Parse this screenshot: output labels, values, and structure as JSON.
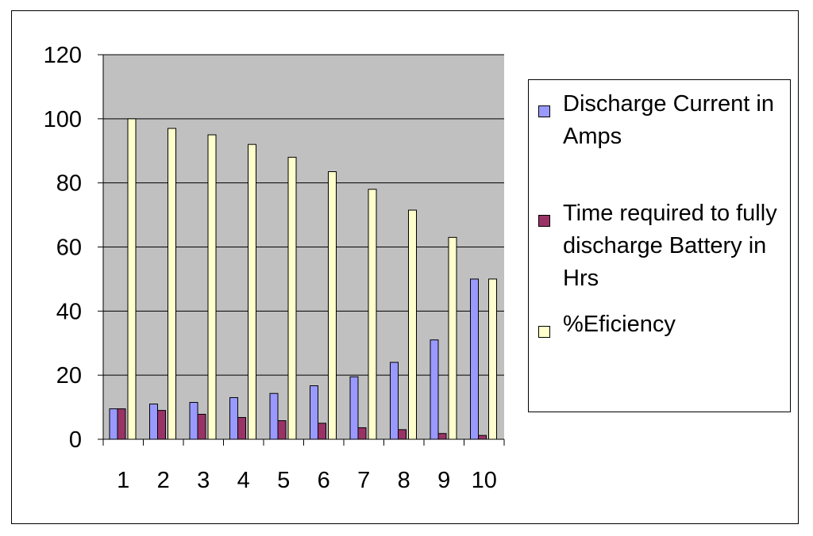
{
  "chart_data": {
    "type": "bar",
    "title": "",
    "xlabel": "",
    "ylabel": "",
    "ylim": [
      0,
      120
    ],
    "yticks": [
      0,
      20,
      40,
      60,
      80,
      100,
      120
    ],
    "grid": true,
    "legend_position": "right",
    "categories": [
      "1",
      "2",
      "3",
      "4",
      "5",
      "6",
      "7",
      "8",
      "9",
      "10"
    ],
    "series": [
      {
        "name": "Discharge Current in Amps",
        "color": "#9999ff",
        "values": [
          9.5,
          11,
          11.5,
          13,
          14.3,
          16.7,
          19.5,
          24,
          31,
          50
        ]
      },
      {
        "name": "Time required to fully discharge Battery in Hrs",
        "color": "#993366",
        "values": [
          9.5,
          9,
          7.8,
          6.8,
          5.8,
          5,
          3.6,
          3,
          1.8,
          1.2
        ]
      },
      {
        "name": "%Eficiency",
        "color": "#ffffcc",
        "values": [
          100,
          97,
          95,
          92,
          88,
          83.5,
          78,
          71.5,
          63,
          50
        ]
      }
    ]
  }
}
